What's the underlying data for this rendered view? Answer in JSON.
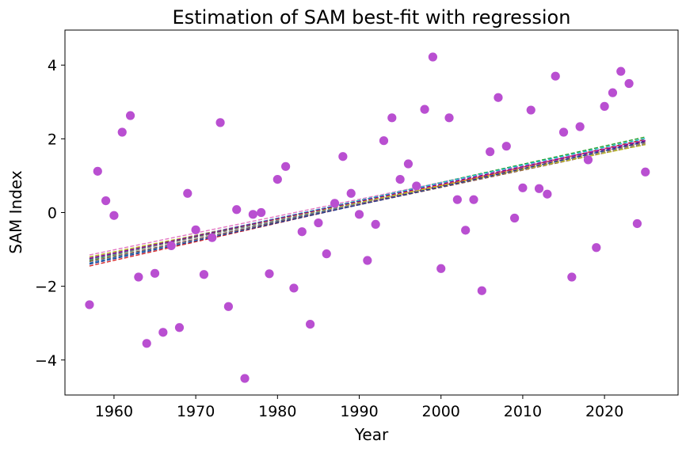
{
  "chart_data": {
    "type": "scatter",
    "title": "Estimation of SAM best-fit with regression",
    "xlabel": "Year",
    "ylabel": "SAM Index",
    "xlim": [
      1954,
      2029
    ],
    "ylim": [
      -4.95,
      4.95
    ],
    "xticks": [
      "1960",
      "1970",
      "1980",
      "1990",
      "2000",
      "2010",
      "2020"
    ],
    "yticks": [
      "−4",
      "−2",
      "0",
      "2",
      "4"
    ],
    "grid": false,
    "point_color": "#b94fd1",
    "x": [
      1957,
      1958,
      1959,
      1960,
      1961,
      1962,
      1963,
      1964,
      1965,
      1966,
      1967,
      1968,
      1969,
      1970,
      1971,
      1972,
      1973,
      1974,
      1975,
      1976,
      1977,
      1978,
      1979,
      1980,
      1981,
      1982,
      1983,
      1984,
      1985,
      1986,
      1987,
      1988,
      1989,
      1990,
      1991,
      1992,
      1993,
      1994,
      1995,
      1996,
      1997,
      1998,
      1999,
      2000,
      2001,
      2002,
      2003,
      2004,
      2005,
      2006,
      2007,
      2008,
      2009,
      2010,
      2011,
      2012,
      2013,
      2014,
      2015,
      2016,
      2017,
      2018,
      2019,
      2020,
      2021,
      2022,
      2023,
      2024,
      2025
    ],
    "y": [
      -2.5,
      1.12,
      0.32,
      -0.08,
      2.18,
      2.63,
      -1.75,
      -3.55,
      -1.65,
      -3.25,
      -0.9,
      -3.12,
      0.52,
      -0.47,
      -1.68,
      -0.68,
      2.44,
      -2.55,
      0.08,
      -4.5,
      -0.05,
      0.0,
      -1.66,
      0.9,
      1.25,
      -2.05,
      -0.52,
      -3.03,
      -0.28,
      -1.12,
      0.25,
      1.52,
      0.52,
      -0.05,
      -1.3,
      -0.32,
      1.95,
      2.57,
      0.9,
      1.32,
      0.72,
      2.8,
      4.22,
      -1.52,
      2.57,
      0.35,
      -0.48,
      0.35,
      -2.12,
      1.65,
      3.12,
      1.8,
      -0.15,
      0.67,
      2.78,
      0.65,
      0.5,
      3.7,
      2.18,
      -1.75,
      2.33,
      1.43,
      -0.95,
      2.88,
      3.25,
      3.83,
      3.5,
      -0.3,
      1.1
    ],
    "regression_lines": [
      {
        "color": "#1f77b4",
        "y_start": -1.37,
        "y_end": 1.97
      },
      {
        "color": "#ff7f0e",
        "y_start": -1.24,
        "y_end": 1.9
      },
      {
        "color": "#2ca02c",
        "y_start": -1.3,
        "y_end": 2.05
      },
      {
        "color": "#d62728",
        "y_start": -1.45,
        "y_end": 1.99
      },
      {
        "color": "#9467bd",
        "y_start": -1.22,
        "y_end": 1.93
      },
      {
        "color": "#8c564b",
        "y_start": -1.33,
        "y_end": 1.85
      },
      {
        "color": "#e377c2",
        "y_start": -1.15,
        "y_end": 1.96
      },
      {
        "color": "#7f7f7f",
        "y_start": -1.28,
        "y_end": 1.88
      },
      {
        "color": "#bcbd22",
        "y_start": -1.2,
        "y_end": 1.84
      },
      {
        "color": "#17becf",
        "y_start": -1.26,
        "y_end": 2.01
      },
      {
        "color": "#1f3a93",
        "y_start": -1.4,
        "y_end": 1.92
      },
      {
        "color": "#8b008b",
        "y_start": -1.25,
        "y_end": 1.95
      }
    ]
  }
}
